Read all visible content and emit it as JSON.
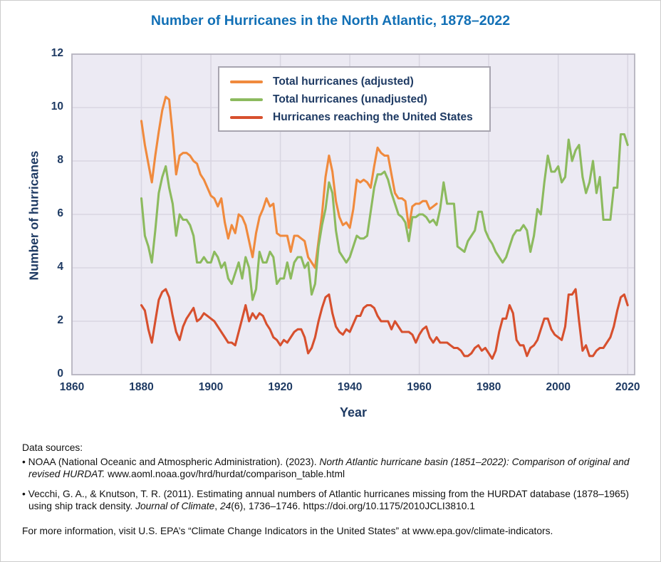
{
  "chart_data": {
    "type": "line",
    "title": "Number of Hurricanes in the North Atlantic, 1878–2022",
    "xlabel": "Year",
    "ylabel": "Number of hurricanes",
    "xlim": [
      1860,
      2022
    ],
    "ylim": [
      0,
      12
    ],
    "x_ticks": [
      1860,
      1880,
      1900,
      1920,
      1940,
      1960,
      1980,
      2000,
      2020
    ],
    "y_ticks": [
      0,
      2,
      4,
      6,
      8,
      10,
      12
    ],
    "grid": true,
    "plot_background": "#eceaf3",
    "gridline_color": "#d9d6e2",
    "plot_border_color": "#b5b2be",
    "legend_position": "top-center",
    "x_step_years": 1,
    "series": [
      {
        "name": "Total hurricanes (adjusted)",
        "color": "#f08a3d",
        "start_year": 1880,
        "end_year": 1965,
        "values": [
          9.5,
          8.6,
          7.9,
          7.2,
          8.2,
          9.1,
          9.9,
          10.4,
          10.3,
          9.0,
          7.5,
          8.2,
          8.3,
          8.3,
          8.2,
          8.0,
          7.9,
          7.5,
          7.3,
          7.0,
          6.7,
          6.6,
          6.3,
          6.6,
          5.7,
          5.1,
          5.6,
          5.3,
          6.0,
          5.9,
          5.6,
          5.0,
          4.4,
          5.3,
          5.9,
          6.2,
          6.6,
          6.3,
          6.4,
          5.3,
          5.2,
          5.2,
          5.2,
          4.6,
          5.2,
          5.2,
          5.1,
          5.0,
          4.4,
          4.2,
          4.0,
          5.0,
          6.0,
          7.4,
          8.2,
          7.6,
          6.5,
          5.9,
          5.6,
          5.7,
          5.5,
          6.2,
          7.3,
          7.2,
          7.3,
          7.2,
          7.0,
          7.8,
          8.5,
          8.3,
          8.2,
          8.2,
          7.5,
          6.8,
          6.6,
          6.6,
          6.5,
          5.5,
          6.3,
          6.4,
          6.4,
          6.5,
          6.5,
          6.2,
          6.3,
          6.4
        ]
      },
      {
        "name": "Total hurricanes (unadjusted)",
        "color": "#8cba5e",
        "start_year": 1880,
        "end_year": 2020,
        "values": [
          6.6,
          5.2,
          4.8,
          4.2,
          5.4,
          6.8,
          7.4,
          7.8,
          7.0,
          6.4,
          5.2,
          6.0,
          5.8,
          5.8,
          5.6,
          5.2,
          4.2,
          4.2,
          4.4,
          4.2,
          4.2,
          4.6,
          4.4,
          4.0,
          4.2,
          3.6,
          3.4,
          3.8,
          4.2,
          3.6,
          4.4,
          4.0,
          2.8,
          3.2,
          4.6,
          4.2,
          4.2,
          4.6,
          4.4,
          3.4,
          3.6,
          3.6,
          4.2,
          3.6,
          4.2,
          4.4,
          4.4,
          4.0,
          4.2,
          3.0,
          3.4,
          4.8,
          5.6,
          6.2,
          7.2,
          6.8,
          5.4,
          4.6,
          4.4,
          4.2,
          4.4,
          4.8,
          5.2,
          5.1,
          5.1,
          5.2,
          6.1,
          7.0,
          7.5,
          7.5,
          7.6,
          7.3,
          6.8,
          6.4,
          6.0,
          5.9,
          5.7,
          5.0,
          5.9,
          5.9,
          6.0,
          6.0,
          5.9,
          5.7,
          5.8,
          5.6,
          6.2,
          7.2,
          6.4,
          6.4,
          6.4,
          4.8,
          4.7,
          4.6,
          5.0,
          5.2,
          5.4,
          6.1,
          6.1,
          5.4,
          5.1,
          4.9,
          4.6,
          4.4,
          4.2,
          4.4,
          4.8,
          5.2,
          5.4,
          5.4,
          5.6,
          5.4,
          4.6,
          5.2,
          6.2,
          6.0,
          7.2,
          8.2,
          7.6,
          7.6,
          7.8,
          7.2,
          7.4,
          8.8,
          8.0,
          8.4,
          8.6,
          7.4,
          6.8,
          7.2,
          8.0,
          6.8,
          7.4,
          5.8,
          5.8,
          5.8,
          7.0,
          7.0,
          9.0,
          9.0,
          8.6
        ]
      },
      {
        "name": "Hurricanes reaching the United States",
        "color": "#d7502e",
        "start_year": 1880,
        "end_year": 2020,
        "values": [
          2.6,
          2.4,
          1.7,
          1.2,
          2.0,
          2.8,
          3.1,
          3.2,
          2.9,
          2.2,
          1.6,
          1.3,
          1.8,
          2.1,
          2.3,
          2.5,
          2.0,
          2.1,
          2.3,
          2.2,
          2.1,
          2.0,
          1.8,
          1.6,
          1.4,
          1.2,
          1.2,
          1.1,
          1.6,
          2.1,
          2.6,
          2.0,
          2.3,
          2.1,
          2.3,
          2.2,
          1.9,
          1.7,
          1.4,
          1.3,
          1.1,
          1.3,
          1.2,
          1.4,
          1.6,
          1.7,
          1.7,
          1.4,
          0.8,
          1.0,
          1.4,
          2.0,
          2.5,
          2.9,
          3.0,
          2.3,
          1.8,
          1.6,
          1.5,
          1.7,
          1.6,
          1.9,
          2.2,
          2.2,
          2.5,
          2.6,
          2.6,
          2.5,
          2.2,
          2.0,
          2.0,
          2.0,
          1.7,
          2.0,
          1.8,
          1.6,
          1.6,
          1.6,
          1.5,
          1.2,
          1.5,
          1.7,
          1.8,
          1.4,
          1.2,
          1.4,
          1.2,
          1.2,
          1.2,
          1.1,
          1.0,
          1.0,
          0.9,
          0.7,
          0.7,
          0.8,
          1.0,
          1.1,
          0.9,
          1.0,
          0.8,
          0.6,
          0.9,
          1.6,
          2.1,
          2.1,
          2.6,
          2.3,
          1.3,
          1.1,
          1.1,
          0.7,
          1.0,
          1.1,
          1.3,
          1.7,
          2.1,
          2.1,
          1.7,
          1.5,
          1.4,
          1.3,
          1.8,
          3.0,
          3.0,
          3.2,
          2.0,
          0.9,
          1.1,
          0.7,
          0.7,
          0.9,
          1.0,
          1.0,
          1.2,
          1.4,
          1.8,
          2.4,
          2.9,
          3.0,
          2.6
        ]
      }
    ]
  },
  "footer": {
    "heading": "Data sources:",
    "sources": [
      {
        "segments": [
          {
            "t": "• NOAA (National Oceanic and Atmospheric Administration). (2023). "
          },
          {
            "t": "North Atlantic hurricane basin (1851–2022): Comparison of original and revised HURDAT.",
            "italic": true
          },
          {
            "t": " www.aoml.noaa.gov/hrd/hurdat/comparison_table.html"
          }
        ]
      },
      {
        "segments": [
          {
            "t": "• Vecchi, G. A., & Knutson, T. R. (2011). Estimating annual numbers of Atlantic hurricanes missing from the HURDAT database (1878–1965) using ship track density. "
          },
          {
            "t": "Journal of Climate",
            "italic": true
          },
          {
            "t": ", "
          },
          {
            "t": "24",
            "italic": true
          },
          {
            "t": "(6), 1736–1746. https://doi.org/10.1175/2010JCLI3810.1"
          }
        ]
      }
    ],
    "more_info": "For more information, visit U.S. EPA’s “Climate Change Indicators in the United States” at www.epa.gov/climate-indicators."
  }
}
